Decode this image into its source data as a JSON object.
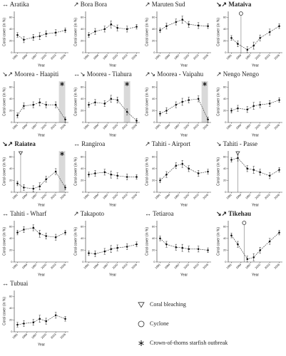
{
  "chart_data": [
    {
      "type": "line",
      "title": "↔ Aratika",
      "bold": false,
      "x": [
        1991,
        1993,
        1996,
        1998,
        2000,
        2003,
        2006
      ],
      "values": [
        30,
        22,
        26,
        28,
        32,
        34,
        38
      ],
      "errors": [
        4,
        5,
        5,
        6,
        5,
        5,
        4
      ],
      "xlim": [
        1990,
        2007
      ],
      "ylim": [
        0,
        70
      ],
      "xticks": [
        1991,
        1994,
        1997,
        2000,
        2003,
        2006
      ],
      "yticks": [
        0,
        20,
        40,
        60
      ],
      "xlabel": "Year",
      "ylabel": "Coral cover (in %)",
      "events": []
    },
    {
      "type": "line",
      "title": "↗ Bora Bora",
      "bold": false,
      "x": [
        1991,
        1993,
        1996,
        1998,
        2000,
        2003,
        2006
      ],
      "values": [
        30,
        36,
        40,
        48,
        42,
        40,
        44
      ],
      "errors": [
        4,
        5,
        5,
        6,
        5,
        5,
        4
      ],
      "xlim": [
        1990,
        2007
      ],
      "ylim": [
        0,
        70
      ],
      "xticks": [
        1991,
        1994,
        1997,
        2000,
        2003,
        2006
      ],
      "yticks": [
        0,
        20,
        40,
        60
      ],
      "xlabel": "Year",
      "ylabel": "Coral cover (in %)",
      "events": []
    },
    {
      "type": "line",
      "title": "↗ Maruten Sud",
      "bold": false,
      "x": [
        1991,
        1993,
        1996,
        1998,
        2000,
        2003,
        2006
      ],
      "values": [
        38,
        45,
        52,
        56,
        48,
        46,
        45
      ],
      "errors": [
        4,
        5,
        5,
        6,
        5,
        5,
        4
      ],
      "xlim": [
        1990,
        2007
      ],
      "ylim": [
        0,
        70
      ],
      "xticks": [
        1991,
        1994,
        1997,
        2000,
        2003,
        2006
      ],
      "yticks": [
        0,
        20,
        40,
        60
      ],
      "xlabel": "Year",
      "ylabel": "Coral cover (in %)",
      "events": []
    },
    {
      "type": "line",
      "title": "↘↗ Mataiva",
      "bold": true,
      "x": [
        1991,
        1993,
        1996,
        1998,
        2000,
        2003,
        2006
      ],
      "values": [
        25,
        15,
        5,
        12,
        25,
        35,
        45
      ],
      "errors": [
        4,
        5,
        5,
        6,
        5,
        5,
        4
      ],
      "xlim": [
        1990,
        2007
      ],
      "ylim": [
        0,
        70
      ],
      "xticks": [
        1991,
        1994,
        1997,
        2000,
        2003,
        2006
      ],
      "yticks": [
        0,
        20,
        40,
        60
      ],
      "xlabel": "Year",
      "ylabel": "Coral cover (in %)",
      "events": [
        {
          "x": 1994,
          "legend": 1
        }
      ]
    },
    {
      "type": "line",
      "title": "↘↗ Moorea - Haapiti",
      "bold": false,
      "x": [
        1991,
        1993,
        1996,
        1998,
        2000,
        2003,
        2006
      ],
      "values": [
        12,
        28,
        30,
        34,
        30,
        30,
        5
      ],
      "errors": [
        4,
        5,
        5,
        6,
        5,
        5,
        4
      ],
      "xlim": [
        1990,
        2007
      ],
      "ylim": [
        0,
        70
      ],
      "xticks": [
        1991,
        1994,
        1997,
        2000,
        2003,
        2006
      ],
      "yticks": [
        0,
        20,
        40,
        60
      ],
      "xlabel": "Year",
      "ylabel": "Coral cover (in %)",
      "events": [
        {
          "x": [
            2004,
            2006
          ],
          "legend": 2
        }
      ]
    },
    {
      "type": "line",
      "title": "↔↘ Moorea - Tiahura",
      "bold": false,
      "x": [
        1991,
        1993,
        1996,
        1998,
        2000,
        2003,
        2006
      ],
      "values": [
        30,
        34,
        32,
        40,
        38,
        18,
        3
      ],
      "errors": [
        4,
        5,
        5,
        6,
        5,
        5,
        4
      ],
      "xlim": [
        1990,
        2007
      ],
      "ylim": [
        0,
        70
      ],
      "xticks": [
        1991,
        1994,
        1997,
        2000,
        2003,
        2006
      ],
      "yticks": [
        0,
        20,
        40,
        60
      ],
      "xlabel": "Year",
      "ylabel": "Coral cover (in %)",
      "events": [
        {
          "x": [
            2002,
            2004
          ],
          "legend": 2
        }
      ]
    },
    {
      "type": "line",
      "title": "↗↘ Moorea - Vaipahu",
      "bold": false,
      "x": [
        1991,
        1993,
        1996,
        1998,
        2000,
        2003,
        2006
      ],
      "values": [
        15,
        20,
        30,
        35,
        38,
        40,
        5
      ],
      "errors": [
        4,
        5,
        5,
        6,
        5,
        5,
        4
      ],
      "xlim": [
        1990,
        2007
      ],
      "ylim": [
        0,
        70
      ],
      "xticks": [
        1991,
        1994,
        1997,
        2000,
        2003,
        2006
      ],
      "yticks": [
        0,
        20,
        40,
        60
      ],
      "xlabel": "Year",
      "ylabel": "Coral cover (in %)",
      "events": [
        {
          "x": [
            2004,
            2006
          ],
          "legend": 2
        }
      ]
    },
    {
      "type": "line",
      "title": "↗ Nengo Nengo",
      "bold": false,
      "x": [
        1991,
        1993,
        1996,
        1998,
        2000,
        2003,
        2006
      ],
      "values": [
        20,
        24,
        22,
        28,
        30,
        32,
        38
      ],
      "errors": [
        4,
        5,
        5,
        6,
        5,
        5,
        4
      ],
      "xlim": [
        1990,
        2007
      ],
      "ylim": [
        0,
        70
      ],
      "xticks": [
        1991,
        1994,
        1997,
        2000,
        2003,
        2006
      ],
      "yticks": [
        0,
        20,
        40,
        60
      ],
      "xlabel": "Year",
      "ylabel": "Coral cover (in %)",
      "events": []
    },
    {
      "type": "line",
      "title": "↘↗ Raiatea",
      "bold": true,
      "x": [
        1991,
        1993,
        1996,
        1998,
        2000,
        2003,
        2006
      ],
      "values": [
        15,
        8,
        6,
        10,
        22,
        35,
        8
      ],
      "errors": [
        4,
        5,
        5,
        6,
        5,
        5,
        4
      ],
      "xlim": [
        1990,
        2007
      ],
      "ylim": [
        0,
        70
      ],
      "xticks": [
        1991,
        1994,
        1997,
        2000,
        2003,
        2006
      ],
      "yticks": [
        0,
        20,
        40,
        60
      ],
      "xlabel": "Year",
      "ylabel": "Coral cover (in %)",
      "events": [
        {
          "x": 1992,
          "legend": 0
        },
        {
          "x": [
            2004,
            2006
          ],
          "legend": 2
        }
      ]
    },
    {
      "type": "line",
      "title": "↔ Rangiroa",
      "bold": false,
      "x": [
        1991,
        1993,
        1996,
        1998,
        2000,
        2003,
        2006
      ],
      "values": [
        30,
        32,
        34,
        30,
        28,
        26,
        26
      ],
      "errors": [
        4,
        5,
        5,
        6,
        5,
        5,
        4
      ],
      "xlim": [
        1990,
        2007
      ],
      "ylim": [
        0,
        70
      ],
      "xticks": [
        1991,
        1994,
        1997,
        2000,
        2003,
        2006
      ],
      "yticks": [
        0,
        20,
        40,
        60
      ],
      "xlabel": "Year",
      "ylabel": "Coral cover (in %)",
      "events": []
    },
    {
      "type": "line",
      "title": "↗ Tahiti - Airport",
      "bold": false,
      "x": [
        1991,
        1993,
        1996,
        1998,
        2000,
        2003,
        2006
      ],
      "values": [
        20,
        30,
        45,
        48,
        40,
        32,
        35
      ],
      "errors": [
        4,
        5,
        5,
        6,
        5,
        5,
        4
      ],
      "xlim": [
        1990,
        2007
      ],
      "ylim": [
        0,
        70
      ],
      "xticks": [
        1991,
        1994,
        1997,
        2000,
        2003,
        2006
      ],
      "yticks": [
        0,
        20,
        40,
        60
      ],
      "xlabel": "Year",
      "ylabel": "Coral cover (in %)",
      "events": []
    },
    {
      "type": "line",
      "title": "↘ Tahiti - Passe",
      "bold": false,
      "x": [
        1991,
        1993,
        1996,
        1998,
        2000,
        2003,
        2006
      ],
      "values": [
        55,
        58,
        40,
        38,
        34,
        28,
        38
      ],
      "errors": [
        4,
        5,
        5,
        6,
        5,
        5,
        4
      ],
      "xlim": [
        1990,
        2007
      ],
      "ylim": [
        0,
        70
      ],
      "xticks": [
        1991,
        1994,
        1997,
        2000,
        2003,
        2006
      ],
      "yticks": [
        0,
        20,
        40,
        60
      ],
      "xlabel": "Year",
      "ylabel": "Coral cover (in %)",
      "events": [
        {
          "x": 1993,
          "legend": 0
        }
      ]
    },
    {
      "type": "line",
      "title": "↔ Tahiti - Wharf",
      "bold": false,
      "x": [
        1991,
        1993,
        1996,
        1998,
        2000,
        2003,
        2006
      ],
      "values": [
        50,
        55,
        58,
        48,
        44,
        42,
        50
      ],
      "errors": [
        4,
        5,
        5,
        6,
        5,
        5,
        4
      ],
      "xlim": [
        1990,
        2007
      ],
      "ylim": [
        0,
        70
      ],
      "xticks": [
        1991,
        1994,
        1997,
        2000,
        2003,
        2006
      ],
      "yticks": [
        0,
        20,
        40,
        60
      ],
      "xlabel": "Year",
      "ylabel": "Coral cover (in %)",
      "events": []
    },
    {
      "type": "line",
      "title": "↗ Takapoto",
      "bold": false,
      "x": [
        1991,
        1993,
        1996,
        1998,
        2000,
        2003,
        2006
      ],
      "values": [
        15,
        14,
        18,
        22,
        24,
        26,
        30
      ],
      "errors": [
        4,
        5,
        5,
        6,
        5,
        5,
        4
      ],
      "xlim": [
        1990,
        2007
      ],
      "ylim": [
        0,
        70
      ],
      "xticks": [
        1991,
        1994,
        1997,
        2000,
        2003,
        2006
      ],
      "yticks": [
        0,
        20,
        40,
        60
      ],
      "xlabel": "Year",
      "ylabel": "Coral cover (in %)",
      "events": []
    },
    {
      "type": "line",
      "title": "↔ Tetiaroa",
      "bold": false,
      "x": [
        1991,
        1993,
        1996,
        1998,
        2000,
        2003,
        2006
      ],
      "values": [
        40,
        30,
        25,
        24,
        22,
        22,
        20
      ],
      "errors": [
        4,
        5,
        5,
        6,
        5,
        5,
        4
      ],
      "xlim": [
        1990,
        2007
      ],
      "ylim": [
        0,
        70
      ],
      "xticks": [
        1991,
        1994,
        1997,
        2000,
        2003,
        2006
      ],
      "yticks": [
        0,
        20,
        40,
        60
      ],
      "xlabel": "Year",
      "ylabel": "Coral cover (in %)",
      "events": []
    },
    {
      "type": "line",
      "title": "↘↗ Tikehau",
      "bold": true,
      "x": [
        1991,
        1993,
        1996,
        1998,
        2000,
        2003,
        2006
      ],
      "values": [
        45,
        30,
        5,
        8,
        20,
        35,
        50
      ],
      "errors": [
        4,
        5,
        5,
        6,
        5,
        5,
        4
      ],
      "xlim": [
        1990,
        2007
      ],
      "ylim": [
        0,
        70
      ],
      "xticks": [
        1991,
        1994,
        1997,
        2000,
        2003,
        2006
      ],
      "yticks": [
        0,
        20,
        40,
        60
      ],
      "xlabel": "Year",
      "ylabel": "Coral cover (in %)",
      "events": [
        {
          "x": 1995,
          "legend": 1
        }
      ]
    },
    {
      "type": "line",
      "title": "↔ Tubuai",
      "bold": false,
      "x": [
        1991,
        1993,
        1996,
        1998,
        2000,
        2003,
        2006
      ],
      "values": [
        12,
        14,
        16,
        22,
        18,
        28,
        22
      ],
      "errors": [
        4,
        5,
        5,
        6,
        5,
        5,
        4
      ],
      "xlim": [
        1990,
        2007
      ],
      "ylim": [
        0,
        70
      ],
      "xticks": [
        1991,
        1994,
        1997,
        2000,
        2003,
        2006
      ],
      "yticks": [
        0,
        20,
        40,
        60
      ],
      "xlabel": "Year",
      "ylabel": "Coral cover (in %)",
      "events": []
    }
  ],
  "legend": [
    {
      "label": "Coral bleaching",
      "symbol": "triangle"
    },
    {
      "label": "Cyclone",
      "symbol": "circle"
    },
    {
      "label": "Crown-of-thorns starfish outbreak",
      "symbol": "star"
    }
  ]
}
